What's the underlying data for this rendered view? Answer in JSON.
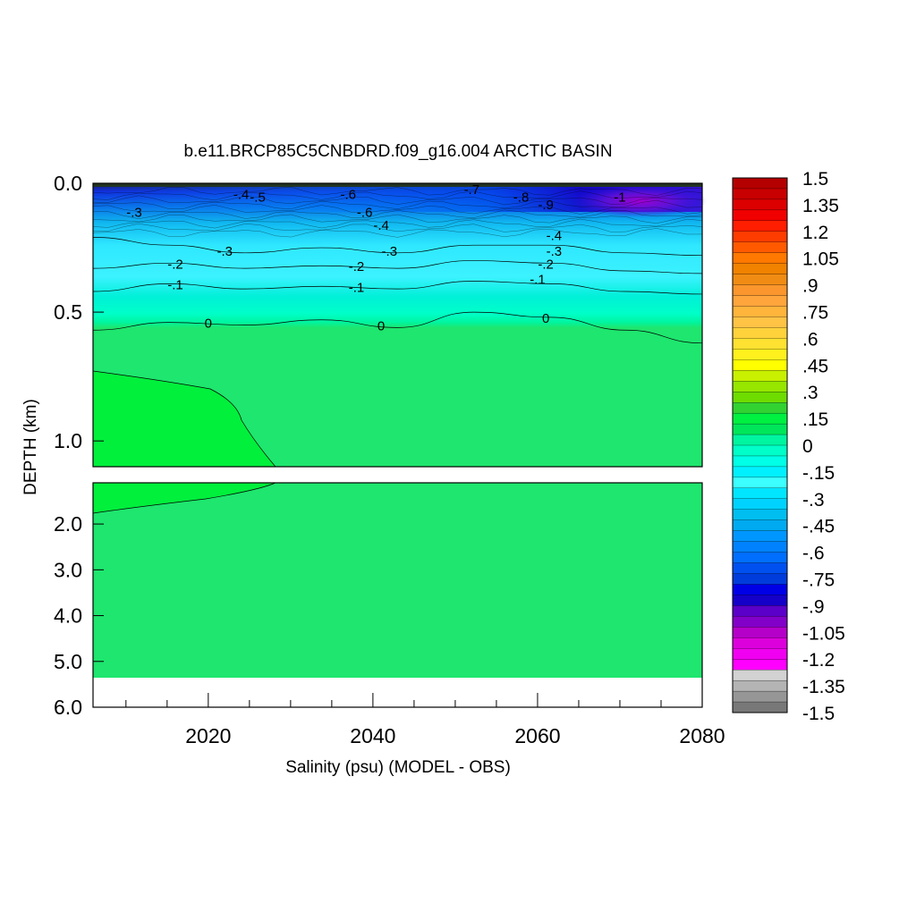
{
  "chart_data": {
    "type": "heatmap",
    "title": "b.e11.BRCP85C5CNBDRD.f09_g16.004 ARCTIC BASIN",
    "xlabel": "Salinity (psu) (MODEL - OBS)",
    "ylabel": "DEPTH (km)",
    "x_ticks": [
      "2020",
      "2040",
      "2060",
      "2080"
    ],
    "x_tick_values": [
      2020,
      2040,
      2060,
      2080
    ],
    "xlim": [
      2006,
      2080
    ],
    "upper_panel": {
      "ylim": [
        0.0,
        1.1
      ],
      "y_ticks": [
        "0.0",
        "0.5",
        "1.0"
      ],
      "y_tick_values": [
        0.0,
        0.5,
        1.0
      ]
    },
    "lower_panel": {
      "ylim": [
        1.1,
        6.0
      ],
      "y_ticks": [
        "2.0",
        "3.0",
        "4.0",
        "5.0",
        "6.0"
      ],
      "y_tick_values": [
        2.0,
        3.0,
        4.0,
        5.0,
        6.0
      ],
      "bottom_depth_km": 5.35
    },
    "colorbar": {
      "labels": [
        "1.5",
        "1.35",
        "1.2",
        "1.05",
        ".9",
        ".75",
        ".6",
        ".45",
        ".3",
        ".15",
        "0",
        "-.15",
        "-.3",
        "-.45",
        "-.6",
        "-.75",
        "-.9",
        "-1.05",
        "-1.2",
        "-1.35",
        "-1.5"
      ],
      "colors": [
        "#b40000",
        "#c80000",
        "#dc0000",
        "#f00000",
        "#ff1e00",
        "#ff3c00",
        "#ff5a00",
        "#ff7800",
        "#f08200",
        "#f08c14",
        "#fa962d",
        "#ffa53c",
        "#ffb43c",
        "#ffc346",
        "#ffd23c",
        "#ffe132",
        "#fff01e",
        "#ffff00",
        "#c8f000",
        "#96e600",
        "#6edc00",
        "#32d232",
        "#00f041",
        "#00e65a",
        "#00f5a0",
        "#00ffc8",
        "#00ffe6",
        "#00f0ff",
        "#3cffff",
        "#00e6ff",
        "#00d2ff",
        "#00bef0",
        "#00aaf0",
        "#0096ff",
        "#0082ff",
        "#006eff",
        "#0050f0",
        "#003cdc",
        "#0000e6",
        "#1400c8",
        "#5a00c8",
        "#8200c8",
        "#b400c8",
        "#dc00dc",
        "#f000f0",
        "#ff00ff",
        "#d2d2d2",
        "#b4b4b4",
        "#969696",
        "#787878"
      ]
    },
    "contours": [
      {
        "label": "0",
        "depths_km": [
          0.57,
          0.54,
          0.55,
          0.53,
          0.56,
          0.5,
          0.52,
          0.57,
          0.62
        ]
      },
      {
        "label": "-.1",
        "depths_km": [
          0.42,
          0.39,
          0.41,
          0.4,
          0.41,
          0.38,
          0.39,
          0.42,
          0.43
        ]
      },
      {
        "label": "-.2",
        "depths_km": [
          0.33,
          0.31,
          0.33,
          0.32,
          0.33,
          0.3,
          0.31,
          0.34,
          0.35
        ]
      },
      {
        "label": "-.3",
        "depths_km": [
          0.21,
          0.24,
          0.27,
          0.25,
          0.27,
          0.24,
          0.24,
          0.27,
          0.28
        ]
      }
    ],
    "contour_labels": [
      {
        "text": "0",
        "x": 2020,
        "y": 0.54
      },
      {
        "text": "0",
        "x": 2041,
        "y": 0.55
      },
      {
        "text": "0",
        "x": 2061,
        "y": 0.52
      },
      {
        "text": "-.1",
        "x": 2016,
        "y": 0.39
      },
      {
        "text": "-.1",
        "x": 2038,
        "y": 0.4
      },
      {
        "text": "-.1",
        "x": 2060,
        "y": 0.37
      },
      {
        "text": "-.2",
        "x": 2016,
        "y": 0.31
      },
      {
        "text": "-.2",
        "x": 2038,
        "y": 0.32
      },
      {
        "text": "-.2",
        "x": 2061,
        "y": 0.31
      },
      {
        "text": "-.3",
        "x": 2011,
        "y": 0.11
      },
      {
        "text": "-.3",
        "x": 2022,
        "y": 0.26
      },
      {
        "text": "-.3",
        "x": 2042,
        "y": 0.26
      },
      {
        "text": "-.3",
        "x": 2062,
        "y": 0.26
      },
      {
        "text": "-.4",
        "x": 2041,
        "y": 0.16
      },
      {
        "text": "-.4",
        "x": 2062,
        "y": 0.2
      },
      {
        "text": "-.4",
        "x": 2024,
        "y": 0.04
      },
      {
        "text": "-.5",
        "x": 2026,
        "y": 0.05
      },
      {
        "text": "-.6",
        "x": 2037,
        "y": 0.04
      },
      {
        "text": "-.6",
        "x": 2039,
        "y": 0.11
      },
      {
        "text": "-.7",
        "x": 2052,
        "y": 0.02
      },
      {
        "text": "-.8",
        "x": 2058,
        "y": 0.05
      },
      {
        "text": "-.9",
        "x": 2061,
        "y": 0.08
      },
      {
        "text": "-1",
        "x": 2070,
        "y": 0.05
      }
    ],
    "shallow_anomaly_center": {
      "x": 2070,
      "y": 0.08,
      "value": -1.0
    },
    "deep_region_value": 0.05,
    "deep_positive_patch": {
      "x_range": [
        2006,
        2028
      ],
      "y_range": [
        0.75,
        1.8
      ],
      "value": 0.1
    }
  }
}
